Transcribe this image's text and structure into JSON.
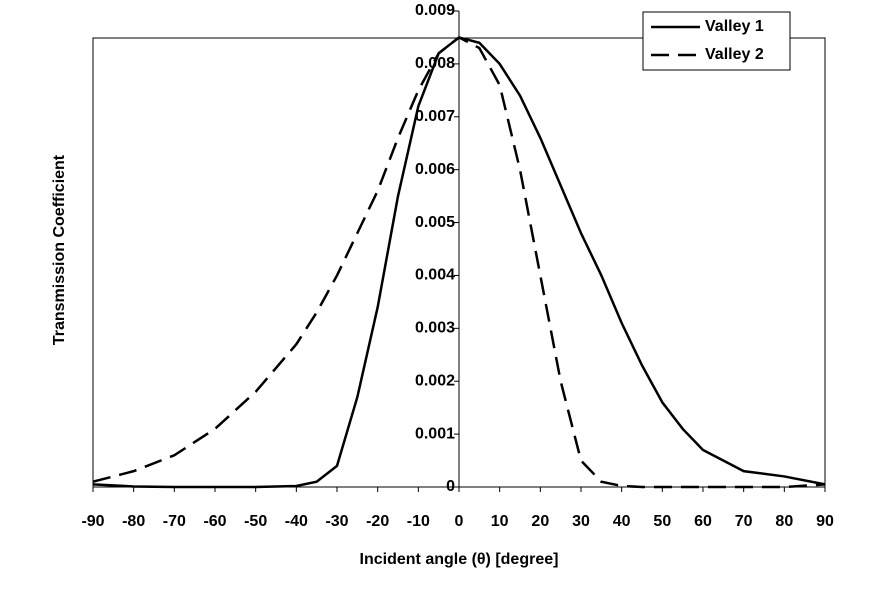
{
  "chart_data": {
    "type": "line",
    "x_label": "Incident angle (θ) [degree]",
    "y_label": "Transmission Coefficient",
    "x": [
      -90,
      -80,
      -70,
      -60,
      -50,
      -40,
      -35,
      -30,
      -25,
      -20,
      -15,
      -10,
      -5,
      0,
      5,
      10,
      15,
      20,
      25,
      30,
      35,
      40,
      45,
      50,
      55,
      60,
      70,
      80,
      90
    ],
    "series": [
      {
        "name": "Valley 1",
        "color": "#000000",
        "dash": "solid",
        "values": [
          5e-05,
          1e-05,
          0,
          0,
          0,
          2e-05,
          0.0001,
          0.0004,
          0.0017,
          0.0034,
          0.0055,
          0.0072,
          0.0082,
          0.0085,
          0.0084,
          0.008,
          0.0074,
          0.0066,
          0.0057,
          0.0048,
          0.004,
          0.0031,
          0.0023,
          0.0016,
          0.0011,
          0.0007,
          0.0003,
          0.0002,
          5e-05
        ]
      },
      {
        "name": "Valley 2",
        "color": "#000000",
        "dash": "dashed",
        "values": [
          0.0001,
          0.0003,
          0.0006,
          0.0011,
          0.0018,
          0.0027,
          0.0033,
          0.004,
          0.0048,
          0.0056,
          0.0066,
          0.0075,
          0.0082,
          0.0085,
          0.0083,
          0.0076,
          0.006,
          0.004,
          0.002,
          0.0005,
          0.0001,
          2e-05,
          0,
          0,
          0,
          0,
          0,
          0,
          5e-05
        ]
      }
    ],
    "xlim": [
      -90,
      90
    ],
    "ylim": [
      0,
      0.009
    ],
    "xticks": [
      -90,
      -80,
      -70,
      -60,
      -50,
      -40,
      -30,
      -20,
      -10,
      0,
      10,
      20,
      30,
      40,
      50,
      60,
      70,
      80,
      90
    ],
    "yticks": [
      0,
      0.001,
      0.002,
      0.003,
      0.004,
      0.005,
      0.006,
      0.007,
      0.008,
      0.009
    ],
    "legend": "upper right"
  }
}
